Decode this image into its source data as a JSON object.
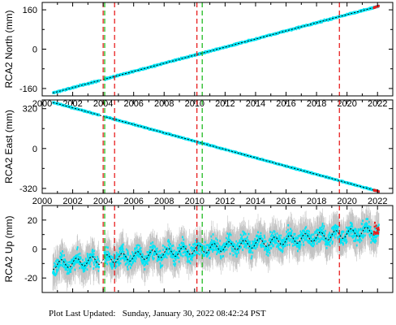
{
  "colors": {
    "data": "#00e5f5",
    "error": "#b4b4b4",
    "model": "#000000",
    "red_line": "#e82020",
    "green_line": "#22bb22",
    "frame": "#000000"
  },
  "footer": {
    "label": "Plot Last Updated:",
    "value": "Sunday, January 30, 2022 08:42:24 PST"
  },
  "chart_data": [
    {
      "type": "scatter",
      "ylabel": "RCA2 North (mm)",
      "xlim": [
        2000.0,
        2023.0
      ],
      "ylim": [
        -190,
        190
      ],
      "xticks": [
        2000,
        2002,
        2004,
        2006,
        2008,
        2010,
        2012,
        2014,
        2016,
        2018,
        2020,
        2022
      ],
      "yticks": [
        -160,
        0,
        160
      ],
      "trend": {
        "x0": 2000.7,
        "y0": -178,
        "x1": 2022.1,
        "y1": 175
      },
      "noise_mm": 3,
      "err_mm": 4,
      "seasonal_mm": 0,
      "red_lines": [
        2004.0,
        2004.75,
        2010.15,
        2019.5
      ],
      "green_lines": [
        2004.1,
        2010.5
      ],
      "show_xticklabels": true
    },
    {
      "type": "scatter",
      "ylabel": "RCA2 East (mm)",
      "xlim": [
        2000.0,
        2023.0
      ],
      "ylim": [
        -360,
        390
      ],
      "xticks": [
        2000,
        2002,
        2004,
        2006,
        2008,
        2010,
        2012,
        2014,
        2016,
        2018,
        2020,
        2022
      ],
      "yticks": [
        -320,
        0,
        320
      ],
      "trend": {
        "x0": 2000.7,
        "y0": 370,
        "x1": 2022.1,
        "y1": -345
      },
      "noise_mm": 5,
      "err_mm": 6,
      "seasonal_mm": 0,
      "red_lines": [
        2004.0,
        2004.75,
        2010.15,
        2019.5
      ],
      "green_lines": [
        2004.1,
        2010.5
      ],
      "show_xticklabels": true
    },
    {
      "type": "scatter",
      "ylabel": "RCA2 Up (mm)",
      "xlim": [
        2000.0,
        2023.0
      ],
      "ylim": [
        -30,
        30
      ],
      "xticks": [
        2000,
        2002,
        2004,
        2006,
        2008,
        2010,
        2012,
        2014,
        2016,
        2018,
        2020,
        2022
      ],
      "yticks": [
        -20,
        0,
        20
      ],
      "trend": {
        "x0": 2000.7,
        "y0": -11,
        "x1": 2022.1,
        "y1": 13
      },
      "noise_mm": 5,
      "err_mm": 9,
      "seasonal_mm": 3,
      "red_lines": [
        2004.0,
        2004.75,
        2010.15,
        2019.5
      ],
      "green_lines": [
        2004.1,
        2010.5
      ],
      "show_xticklabels": false
    }
  ]
}
